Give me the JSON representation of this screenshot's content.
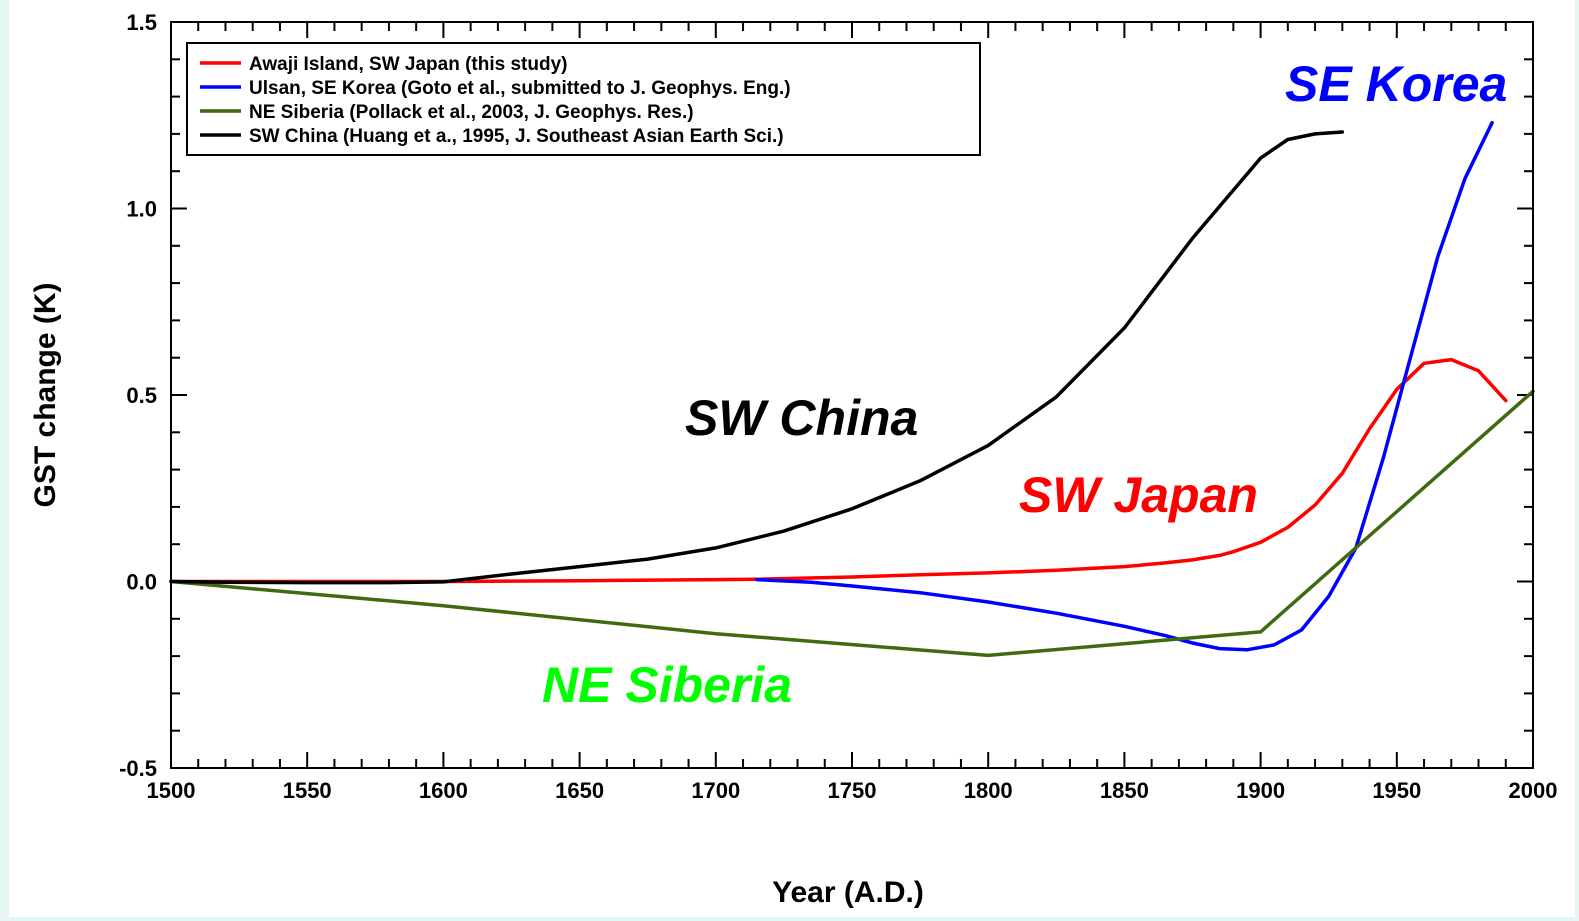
{
  "chart_data": {
    "type": "line",
    "title": "",
    "xlabel": "Year (A.D.)",
    "ylabel": "GST change (K)",
    "xlim": [
      1500,
      2000
    ],
    "ylim": [
      -0.5,
      1.5
    ],
    "x_ticks": [
      1500,
      1550,
      1600,
      1650,
      1700,
      1750,
      1800,
      1850,
      1900,
      1950,
      2000
    ],
    "x_tick_labels": [
      "1500",
      "1550",
      "1600",
      "1650",
      "1700",
      "1750",
      "1800",
      "1850",
      "1900",
      "1950",
      "2000"
    ],
    "y_ticks": [
      -0.5,
      0.0,
      0.5,
      1.0,
      1.5
    ],
    "y_tick_labels": [
      "-0.5",
      "0.0",
      "0.5",
      "1.0",
      "1.5"
    ],
    "x_minor_step": 10,
    "y_minor_step": 0.1,
    "grid": false,
    "legend_position": "top-left",
    "series": [
      {
        "name": "Awaji Island, SW Japan (this study)",
        "color": "#ff0000",
        "x": [
          1500,
          1550,
          1600,
          1650,
          1700,
          1715,
          1750,
          1775,
          1800,
          1825,
          1850,
          1865,
          1875,
          1885,
          1890,
          1900,
          1910,
          1920,
          1930,
          1940,
          1950,
          1960,
          1970,
          1980,
          1990
        ],
        "y": [
          0.0,
          0.0,
          0.0,
          0.002,
          0.005,
          0.006,
          0.012,
          0.018,
          0.023,
          0.03,
          0.04,
          0.05,
          0.058,
          0.07,
          0.08,
          0.105,
          0.145,
          0.205,
          0.29,
          0.41,
          0.515,
          0.585,
          0.595,
          0.565,
          0.485
        ]
      },
      {
        "name": "Ulsan, SE Korea (Goto et al., submitted to J. Geophys. Eng.)",
        "color": "#0000ff",
        "x": [
          1715,
          1735,
          1750,
          1775,
          1800,
          1825,
          1850,
          1865,
          1875,
          1885,
          1895,
          1905,
          1915,
          1925,
          1935,
          1945,
          1955,
          1965,
          1975,
          1985
        ],
        "y": [
          0.005,
          -0.002,
          -0.012,
          -0.03,
          -0.055,
          -0.085,
          -0.12,
          -0.145,
          -0.165,
          -0.18,
          -0.183,
          -0.17,
          -0.13,
          -0.04,
          0.09,
          0.33,
          0.6,
          0.87,
          1.08,
          1.23
        ]
      },
      {
        "name": "NE Siberia (Pollack et al., 2003, J. Geophys. Res.)",
        "color": "#3f6a10",
        "x": [
          1500,
          1600,
          1700,
          1800,
          1900,
          2000
        ],
        "y": [
          0.0,
          -0.065,
          -0.14,
          -0.198,
          -0.135,
          0.51
        ]
      },
      {
        "name": "SW China (Huang et a., 1995, J. Southeast Asian Earth Sci.)",
        "color": "#000000",
        "x": [
          1500,
          1520,
          1550,
          1580,
          1600,
          1625,
          1650,
          1675,
          1700,
          1725,
          1750,
          1775,
          1800,
          1825,
          1850,
          1875,
          1900,
          1910,
          1920,
          1930
        ],
        "y": [
          0.0,
          -0.002,
          -0.003,
          -0.003,
          -0.001,
          0.02,
          0.04,
          0.06,
          0.09,
          0.135,
          0.195,
          0.27,
          0.365,
          0.495,
          0.68,
          0.92,
          1.135,
          1.185,
          1.2,
          1.205
        ]
      }
    ],
    "annotations": [
      {
        "text": "SE Korea",
        "color": "#0000ff"
      },
      {
        "text": "SW China",
        "color": "#000000"
      },
      {
        "text": "SW Japan",
        "color": "#ff0000"
      },
      {
        "text": "NE Siberia",
        "color": "#00ff00"
      }
    ]
  }
}
